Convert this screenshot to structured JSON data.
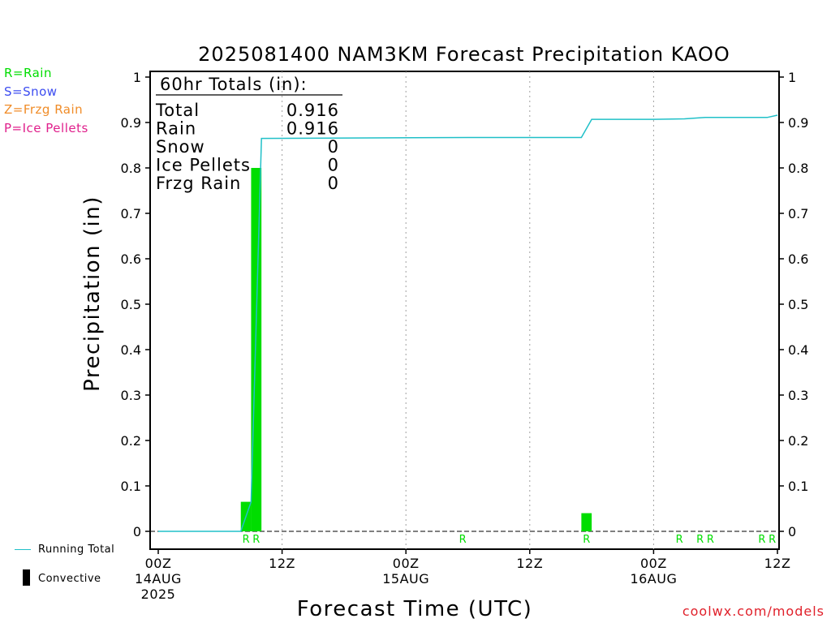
{
  "legend": {
    "ptypes": [
      {
        "label": "R=Rain",
        "color": "#00dd00"
      },
      {
        "label": "S=Snow",
        "color": "#3c4cf0"
      },
      {
        "label": "Z=Frzg Rain",
        "color": "#f08c28"
      },
      {
        "label": "P=Ice Pellets",
        "color": "#e0208c"
      }
    ],
    "running_total_label": "Running Total",
    "convective_label": "Convective"
  },
  "credit": "coolwx.com/models",
  "colors": {
    "rain_bar": "#00dd00",
    "running_total_line": "#20c0c8",
    "grid": "#a0a0a0"
  },
  "chart_data": {
    "type": "bar",
    "title": "2025081400 NAM3KM Forecast Precipitation KAOO",
    "xlabel": "Forecast Time (UTC)",
    "ylabel": "Precipitation (in)",
    "ylim": [
      0,
      1
    ],
    "xlim_hours": [
      0,
      60
    ],
    "yticks": [
      "0",
      "0.1",
      "0.2",
      "0.3",
      "0.4",
      "0.5",
      "0.6",
      "0.7",
      "0.8",
      "0.9",
      "1"
    ],
    "xticks": [
      {
        "hour": 0,
        "lines": [
          "00Z",
          "14AUG",
          "2025"
        ]
      },
      {
        "hour": 12,
        "lines": [
          "12Z"
        ]
      },
      {
        "hour": 24,
        "lines": [
          "00Z",
          "15AUG"
        ]
      },
      {
        "hour": 36,
        "lines": [
          "12Z"
        ]
      },
      {
        "hour": 48,
        "lines": [
          "00Z",
          "16AUG"
        ]
      },
      {
        "hour": 60,
        "lines": [
          "12Z"
        ]
      }
    ],
    "grid": "vertical dotted",
    "totals": {
      "heading": "60hr Totals (in):",
      "rows": [
        {
          "label": "Total",
          "value": "0.916"
        },
        {
          "label": "Rain",
          "value": "0.916"
        },
        {
          "label": "Snow",
          "value": "0"
        },
        {
          "label": "Ice Pellets",
          "value": "0"
        },
        {
          "label": "Frzg Rain",
          "value": "0"
        }
      ]
    },
    "bars": [
      {
        "hour": 9,
        "value": 0.065,
        "type": "R"
      },
      {
        "hour": 10,
        "value": 0.8,
        "type": "R"
      },
      {
        "hour": 42,
        "value": 0.04,
        "type": "R"
      }
    ],
    "ptype_marks": [
      {
        "hour": 9,
        "label": "R"
      },
      {
        "hour": 10,
        "label": "R"
      },
      {
        "hour": 30,
        "label": "R"
      },
      {
        "hour": 42,
        "label": "R"
      },
      {
        "hour": 51,
        "label": "R"
      },
      {
        "hour": 53,
        "label": "R"
      },
      {
        "hour": 54,
        "label": "R"
      },
      {
        "hour": 59,
        "label": "R"
      },
      {
        "hour": 60,
        "label": "R"
      }
    ],
    "running_total": {
      "hours": [
        0,
        7,
        8,
        9,
        10,
        30,
        41,
        42,
        48,
        51,
        53,
        59,
        60
      ],
      "values": [
        0,
        0,
        0,
        0.065,
        0.865,
        0.867,
        0.867,
        0.907,
        0.907,
        0.908,
        0.911,
        0.911,
        0.916
      ]
    }
  }
}
